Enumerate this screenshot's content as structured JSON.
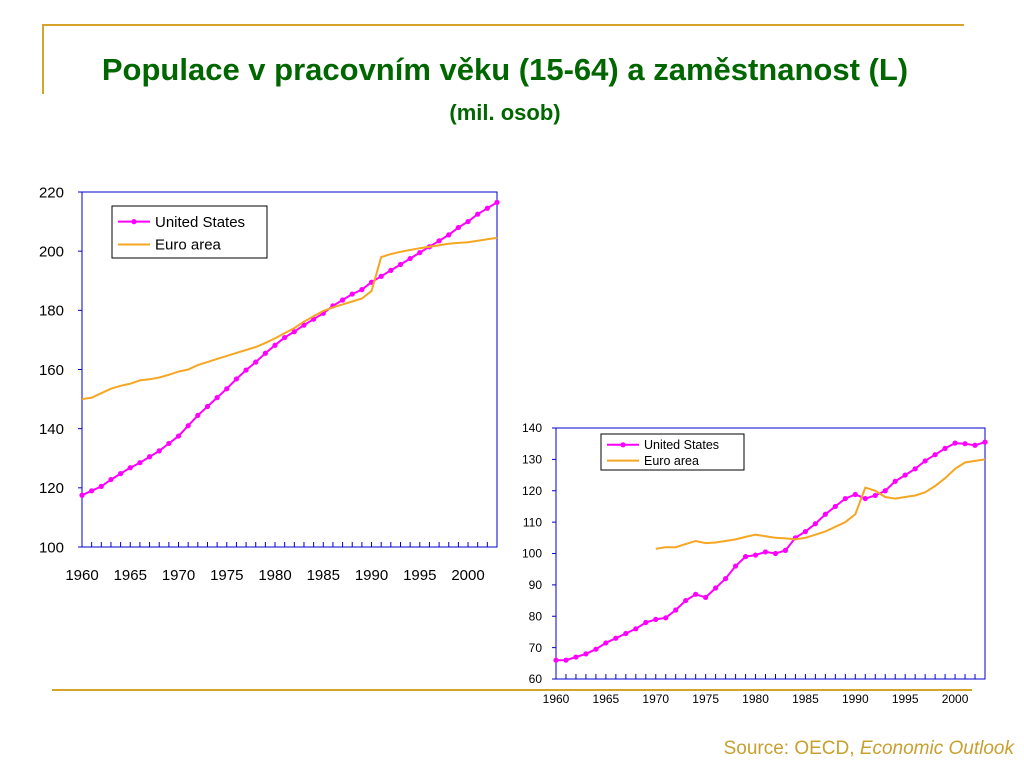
{
  "slide": {
    "title": "Populace v pracovním věku (15-64) a zaměstnanost (L)",
    "subtitle": "(mil. osob)",
    "source_prefix": "Source:   OECD, ",
    "source_publication": "Economic Outlook"
  },
  "colors": {
    "rule": "#d4a52a",
    "title": "#006600",
    "source": "#c8a030",
    "axis": "#0000cc",
    "us": "#ff00ff",
    "euro": "#f5a623"
  },
  "chart_data": [
    {
      "type": "line",
      "x_tick_labels": [
        "1960",
        "1965",
        "1970",
        "1975",
        "1980",
        "1985",
        "1990",
        "1995",
        "2000"
      ],
      "y_tick_labels": [
        "100",
        "120",
        "140",
        "160",
        "180",
        "200",
        "220"
      ],
      "xlim": [
        1960,
        2003
      ],
      "ylim": [
        100,
        220
      ],
      "grid": false,
      "legend_position": "top-left",
      "series": [
        {
          "name": "United States",
          "color": "#ff00ff",
          "markers": true,
          "x": [
            1960,
            1961,
            1962,
            1963,
            1964,
            1965,
            1966,
            1967,
            1968,
            1969,
            1970,
            1971,
            1972,
            1973,
            1974,
            1975,
            1976,
            1977,
            1978,
            1979,
            1980,
            1981,
            1982,
            1983,
            1984,
            1985,
            1986,
            1987,
            1988,
            1989,
            1990,
            1991,
            1992,
            1993,
            1994,
            1995,
            1996,
            1997,
            1998,
            1999,
            2000,
            2001,
            2002,
            2003
          ],
          "values": [
            117.5,
            119.0,
            120.5,
            122.8,
            124.8,
            126.8,
            128.5,
            130.5,
            132.5,
            135.0,
            137.5,
            141.0,
            144.5,
            147.5,
            150.5,
            153.5,
            156.8,
            159.8,
            162.5,
            165.5,
            168.2,
            170.8,
            172.8,
            175.0,
            177.0,
            179.0,
            181.5,
            183.5,
            185.5,
            187.0,
            189.5,
            191.5,
            193.5,
            195.5,
            197.5,
            199.5,
            201.5,
            203.5,
            205.5,
            208.0,
            210.0,
            212.5,
            214.5,
            216.5
          ]
        },
        {
          "name": "Euro area",
          "color": "#f5a623",
          "markers": false,
          "x": [
            1960,
            1961,
            1962,
            1963,
            1964,
            1965,
            1966,
            1967,
            1968,
            1969,
            1970,
            1971,
            1972,
            1973,
            1974,
            1975,
            1976,
            1977,
            1978,
            1979,
            1980,
            1981,
            1982,
            1983,
            1984,
            1985,
            1986,
            1987,
            1988,
            1989,
            1990,
            1991,
            1992,
            1993,
            1994,
            1995,
            1996,
            1997,
            1998,
            1999,
            2000,
            2001,
            2002,
            2003
          ],
          "values": [
            150.0,
            150.5,
            152.0,
            153.5,
            154.5,
            155.2,
            156.3,
            156.7,
            157.3,
            158.2,
            159.3,
            160.0,
            161.5,
            162.5,
            163.6,
            164.6,
            165.6,
            166.6,
            167.6,
            169.0,
            170.5,
            172.3,
            174.0,
            176.2,
            178.0,
            179.8,
            181.0,
            182.0,
            183.0,
            184.0,
            186.5,
            198.0,
            199.0,
            199.8,
            200.4,
            201.0,
            201.5,
            202.0,
            202.5,
            202.8,
            203.0,
            203.5,
            204.0,
            204.5
          ]
        }
      ]
    },
    {
      "type": "line",
      "x_tick_labels": [
        "1960",
        "1965",
        "1970",
        "1975",
        "1980",
        "1985",
        "1990",
        "1995",
        "2000"
      ],
      "y_tick_labels": [
        "60",
        "70",
        "80",
        "90",
        "100",
        "110",
        "120",
        "130",
        "140"
      ],
      "xlim": [
        1960,
        2003
      ],
      "ylim": [
        60,
        140
      ],
      "grid": false,
      "legend_position": "top-right",
      "series": [
        {
          "name": "United States",
          "color": "#ff00ff",
          "markers": true,
          "x": [
            1960,
            1961,
            1962,
            1963,
            1964,
            1965,
            1966,
            1967,
            1968,
            1969,
            1970,
            1971,
            1972,
            1973,
            1974,
            1975,
            1976,
            1977,
            1978,
            1979,
            1980,
            1981,
            1982,
            1983,
            1984,
            1985,
            1986,
            1987,
            1988,
            1989,
            1990,
            1991,
            1992,
            1993,
            1994,
            1995,
            1996,
            1997,
            1998,
            1999,
            2000,
            2001,
            2002,
            2003
          ],
          "values": [
            66.0,
            66.0,
            67.0,
            68.0,
            69.5,
            71.5,
            73.0,
            74.5,
            76.0,
            78.0,
            79.0,
            79.5,
            82.0,
            85.0,
            87.0,
            86.0,
            89.0,
            92.0,
            96.0,
            99.0,
            99.5,
            100.5,
            100.0,
            101.0,
            105.0,
            107.0,
            109.5,
            112.5,
            115.0,
            117.5,
            118.8,
            117.5,
            118.5,
            120.0,
            123.0,
            125.0,
            127.0,
            129.5,
            131.5,
            133.5,
            135.2,
            135.0,
            134.5,
            135.5
          ]
        },
        {
          "name": "Euro area",
          "color": "#f5a623",
          "markers": false,
          "x": [
            1970,
            1971,
            1972,
            1973,
            1974,
            1975,
            1976,
            1977,
            1978,
            1979,
            1980,
            1981,
            1982,
            1983,
            1984,
            1985,
            1986,
            1987,
            1988,
            1989,
            1990,
            1991,
            1992,
            1993,
            1994,
            1995,
            1996,
            1997,
            1998,
            1999,
            2000,
            2001,
            2002,
            2003
          ],
          "values": [
            101.5,
            102.0,
            102.0,
            103.0,
            104.0,
            103.3,
            103.5,
            104.0,
            104.5,
            105.3,
            106.0,
            105.5,
            105.0,
            104.8,
            104.5,
            105.0,
            106.0,
            107.0,
            108.5,
            110.0,
            112.5,
            121.0,
            120.0,
            118.0,
            117.5,
            118.0,
            118.5,
            119.5,
            121.5,
            124.0,
            127.0,
            129.0,
            129.5,
            130.0
          ]
        }
      ]
    }
  ]
}
